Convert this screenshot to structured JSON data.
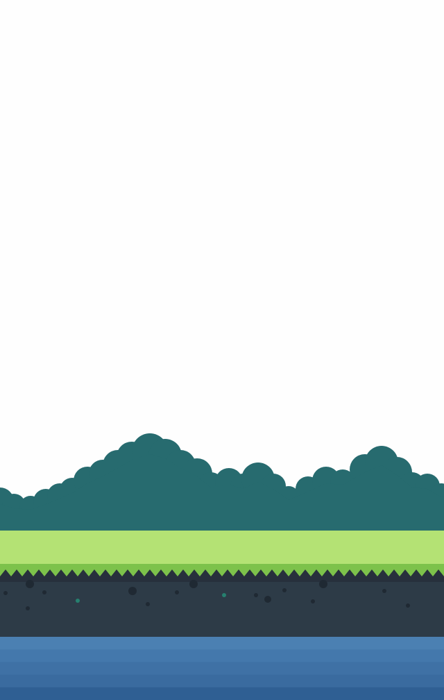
{
  "scene": {
    "type": "side-scroller background",
    "colors": {
      "sky": "#fefefe",
      "bushes": "#276b6f",
      "grass_light": "#b4e274",
      "grass_dark": "#7dc24b",
      "soil": "#2d3b47",
      "soil_stripe": "#27303c",
      "rock": "#1f2933",
      "gem": "#26806f",
      "water_bands": [
        "#4b80b2",
        "#4478ac",
        "#3f71a5",
        "#3a6b9f",
        "#2f5f93"
      ]
    },
    "layers": [
      "sky",
      "bush-hills",
      "grass-strip",
      "soil-ground",
      "water"
    ]
  }
}
